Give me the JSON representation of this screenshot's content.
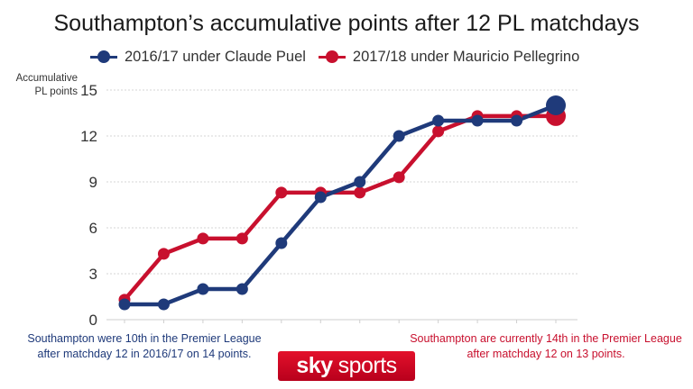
{
  "chart_data": {
    "type": "line",
    "title": "Southampton’s accumulative points after 12 PL matchdays",
    "ylabel": "Accumulative PL points",
    "ylim": [
      0,
      15
    ],
    "yticks": [
      0,
      3,
      6,
      9,
      12,
      15
    ],
    "x": [
      1,
      2,
      3,
      4,
      5,
      6,
      7,
      8,
      9,
      10,
      11,
      12
    ],
    "grid": "horizontal",
    "legend_position": "top",
    "series": [
      {
        "name": "2016/17 under Claude Puel",
        "color": "#1f3a7a",
        "values": [
          1,
          1,
          2,
          2,
          5,
          8,
          9,
          12,
          13,
          13,
          13,
          14
        ]
      },
      {
        "name": "2017/18 under Mauricio Pellegrino",
        "color": "#c8102e",
        "values": [
          1.3,
          4.3,
          5.3,
          5.3,
          8.3,
          8.3,
          8.3,
          9.3,
          12.3,
          13.3,
          13.3,
          13.3
        ]
      }
    ]
  },
  "notes": {
    "left": "Southampton were 10th in the Premier League after matchday 12 in 2016/17 on 14 points.",
    "right": "Southampton are currently 14th in the Premier League after matchday 12 on 13 points."
  },
  "logo": {
    "sky": "sky",
    "sports": "sports"
  }
}
